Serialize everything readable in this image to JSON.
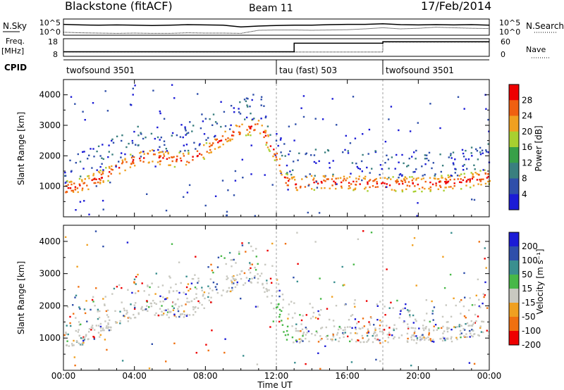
{
  "header": {
    "station": "Blackstone (fitACF)",
    "beam": "Beam 11",
    "date": "17/Feb/2014"
  },
  "colors": {
    "axes": "#000000",
    "background": "#ffffff",
    "power_scale": [
      "#1b1bd6",
      "#2f4faa",
      "#3a7f7f",
      "#38a048",
      "#a8d030",
      "#f0a020",
      "#f06010",
      "#ee0000"
    ],
    "velocity_scale": [
      "#1b1bd6",
      "#2f4faa",
      "#3a8f8f",
      "#48b848",
      "#c8c8c0",
      "#f0a020",
      "#f07010",
      "#ee0000"
    ]
  },
  "chart_data": [
    {
      "type": "line",
      "id": "noise",
      "left_label": "N.Sky",
      "right_label": "N.Search",
      "yticks": [
        "10^5",
        "10^0"
      ],
      "yticks_right": [
        "10^5",
        "10^0"
      ],
      "series": [
        {
          "values": [
            3.6,
            3.4,
            3.3,
            3.4,
            3.3,
            3.2,
            3.3,
            3.5,
            3.4,
            3.3,
            2.7,
            3.0,
            3.2,
            3.3,
            3.3,
            3.5,
            3.6,
            3.6,
            3.8,
            3.5,
            3.4,
            3.5,
            3.4,
            3.5,
            3.3
          ]
        },
        {
          "values": [
            0.8,
            0.6,
            0.5,
            0.4,
            0.5,
            0.4,
            0.4,
            0.6,
            0.5,
            0.5,
            0.4,
            1.5,
            1.6,
            1.6,
            1.5,
            1.6,
            1.7,
            2.0,
            2.4,
            2.0,
            2.2,
            2.6,
            2.4,
            2.2,
            2.1
          ]
        }
      ]
    },
    {
      "type": "line",
      "id": "frequency",
      "left_label": "Freq.",
      "left_unit": "[MHz]",
      "right_label": "Nave",
      "yticks": [
        18,
        8
      ],
      "yticks_right": [
        60,
        0
      ],
      "series": [
        {
          "x": [
            0,
            13,
            13,
            18,
            18,
            24
          ],
          "values": [
            10.5,
            10.5,
            16.0,
            16.0,
            17.0,
            17.0
          ]
        },
        {
          "x": [
            0,
            13,
            13,
            18,
            18,
            24
          ],
          "values": [
            14,
            14,
            14,
            14,
            52,
            52
          ]
        }
      ]
    },
    {
      "type": "text",
      "id": "cpid",
      "left_label": "CPID",
      "segments": [
        {
          "start": 0,
          "label": "twofsound 3501"
        },
        {
          "start": 12,
          "label": "tau (fast) 503"
        },
        {
          "start": 18,
          "label": "twofsound 3501"
        }
      ]
    },
    {
      "type": "heatmap",
      "id": "power",
      "ylabel": "Slant Range [km]",
      "ylim": [
        0,
        4500
      ],
      "yticks": [
        1000,
        2000,
        3000,
        4000
      ],
      "xlim": [
        0,
        24
      ],
      "colorbar": {
        "label": "Power [dB]",
        "ticks": [
          4,
          8,
          12,
          16,
          20,
          24,
          28
        ]
      },
      "echo_band": {
        "x": [
          0,
          1,
          2,
          3,
          4,
          5,
          6,
          7,
          8,
          9,
          10,
          11,
          12,
          12.5,
          13,
          14,
          16,
          18,
          20,
          22,
          23,
          24
        ],
        "center": [
          950,
          1050,
          1300,
          1600,
          1900,
          2000,
          1900,
          1900,
          2200,
          2600,
          2900,
          3000,
          2000,
          1200,
          1100,
          1150,
          1150,
          1100,
          1100,
          1150,
          1250,
          1350
        ]
      }
    },
    {
      "type": "heatmap",
      "id": "velocity",
      "ylabel": "Slant Range [km]",
      "xlabel": "Time UT",
      "ylim": [
        0,
        4500
      ],
      "yticks": [
        1000,
        2000,
        3000,
        4000
      ],
      "xlim": [
        0,
        24
      ],
      "xticks": [
        "00:00",
        "04:00",
        "08:00",
        "12:00",
        "16:00",
        "20:00",
        "00:00"
      ],
      "colorbar": {
        "label": "Velocity [m s⁻¹]",
        "ticks": [
          200,
          100,
          50,
          15,
          -15,
          -50,
          -100,
          -200
        ]
      }
    }
  ]
}
